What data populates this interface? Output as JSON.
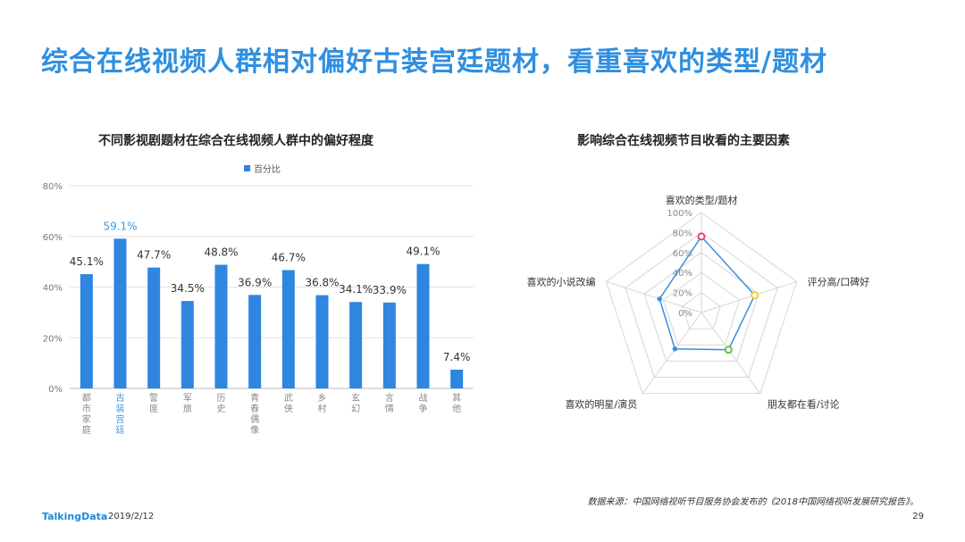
{
  "page": {
    "title": "综合在线视频人群相对偏好古装宫廷题材，看重喜欢的类型/题材",
    "brand": "TalkingData",
    "date": "2019/2/12",
    "source": "数据来源：中国网络视听节目服务协会发布的《2018中国网络视听发展研究报告》。",
    "page_number": "29"
  },
  "colors": {
    "title": "#2f8fe0",
    "bar": "#2e86e0",
    "highlight_label": "#3a9ae6",
    "radar_line": "#3a8fe0"
  },
  "chart_data": [
    {
      "type": "bar",
      "title": "不同影视剧题材在综合在线视频人群中的偏好程度",
      "legend": [
        "百分比"
      ],
      "legend_position": "top-center",
      "categories": [
        "都市家庭",
        "古装宫廷",
        "警匪",
        "军旅",
        "历史",
        "青春偶像",
        "武侠",
        "乡村",
        "玄幻",
        "言情",
        "战争",
        "其他"
      ],
      "values": [
        45.1,
        59.1,
        47.7,
        34.5,
        48.8,
        36.9,
        46.7,
        36.8,
        34.1,
        33.9,
        49.1,
        7.4
      ],
      "data_labels": [
        "45.1%",
        "59.1%",
        "47.7%",
        "34.5%",
        "48.8%",
        "36.9%",
        "46.7%",
        "36.8%",
        "34.1%",
        "33.9%",
        "49.1%",
        "7.4%"
      ],
      "highlight_index": 1,
      "ylim": [
        0,
        80
      ],
      "yticks": [
        "0%",
        "20%",
        "40%",
        "60%",
        "80%"
      ],
      "grid": true
    },
    {
      "type": "radar",
      "title": "影响综合在线视频节目收看的主要因素",
      "categories": [
        "喜欢的类型/题材",
        "评分高/口碑好",
        "朋友都在看/讨论",
        "喜欢的明星/演员",
        "喜欢的小说改编"
      ],
      "values": [
        76,
        56,
        46,
        45,
        44
      ],
      "marker_colors": [
        "#e8456e",
        "#e8d23a",
        "#6cc04a",
        "#3a8fe0",
        "#3a8fe0"
      ],
      "rlim": [
        0,
        100
      ],
      "rticks": [
        "0%",
        "20%",
        "40%",
        "60%",
        "80%",
        "100%"
      ]
    }
  ]
}
